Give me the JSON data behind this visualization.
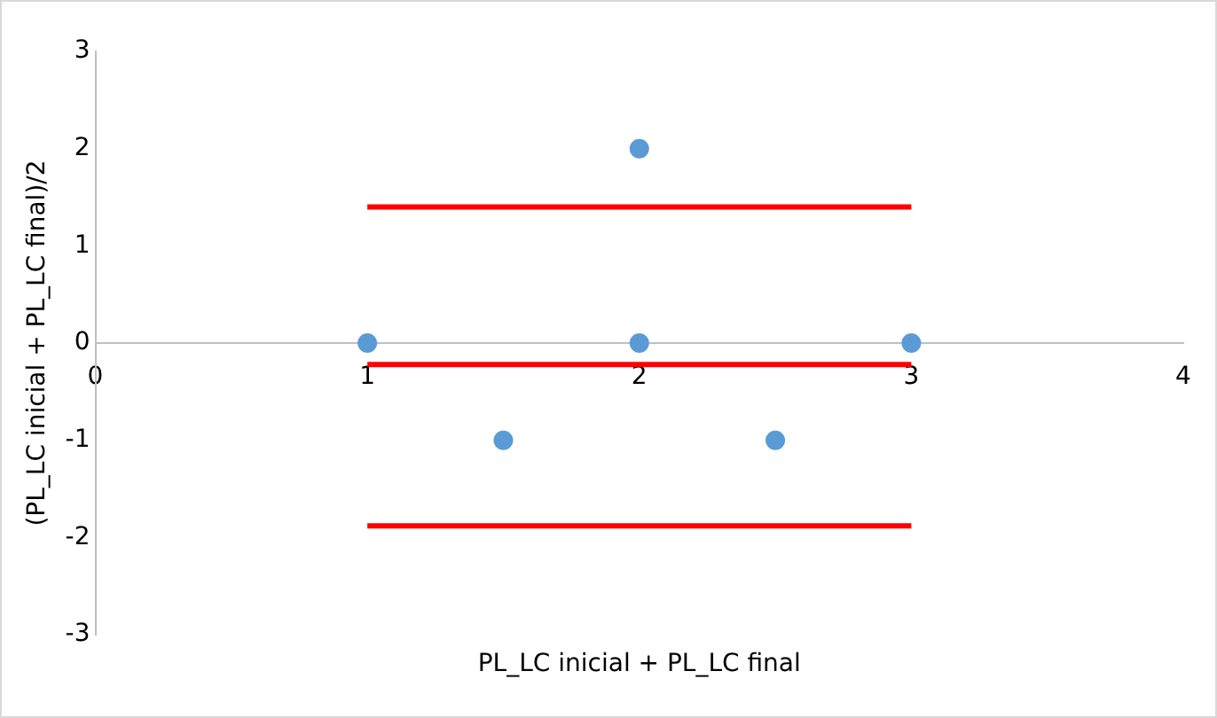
{
  "chart_data": {
    "type": "scatter",
    "xlabel": "PL_LC inicial + PL_LC final",
    "ylabel": "(PL_LC inicial + PL_LC final)/2",
    "xlim": [
      0,
      4
    ],
    "xticks": [
      0,
      1,
      2,
      3,
      4
    ],
    "ylim": [
      -3,
      3
    ],
    "yticks": [
      -3,
      -2,
      -1,
      0,
      1,
      2,
      3
    ],
    "grid": false,
    "legend": false,
    "series": [
      {
        "marker": "circle",
        "color": "#5b9bd5",
        "x": [
          1,
          1.5,
          2,
          2,
          2.5,
          3
        ],
        "values": [
          0,
          -1,
          2,
          0,
          -1,
          0
        ]
      },
      {
        "type": "line",
        "color": "#ff0000",
        "x": [
          1,
          3
        ],
        "values": [
          1.4,
          1.4
        ]
      },
      {
        "type": "line",
        "color": "#ff0000",
        "x": [
          1,
          3
        ],
        "values": [
          -0.22,
          -0.22
        ]
      },
      {
        "type": "line",
        "color": "#ff0000",
        "x": [
          1,
          3
        ],
        "values": [
          -1.88,
          -1.88
        ]
      }
    ]
  }
}
